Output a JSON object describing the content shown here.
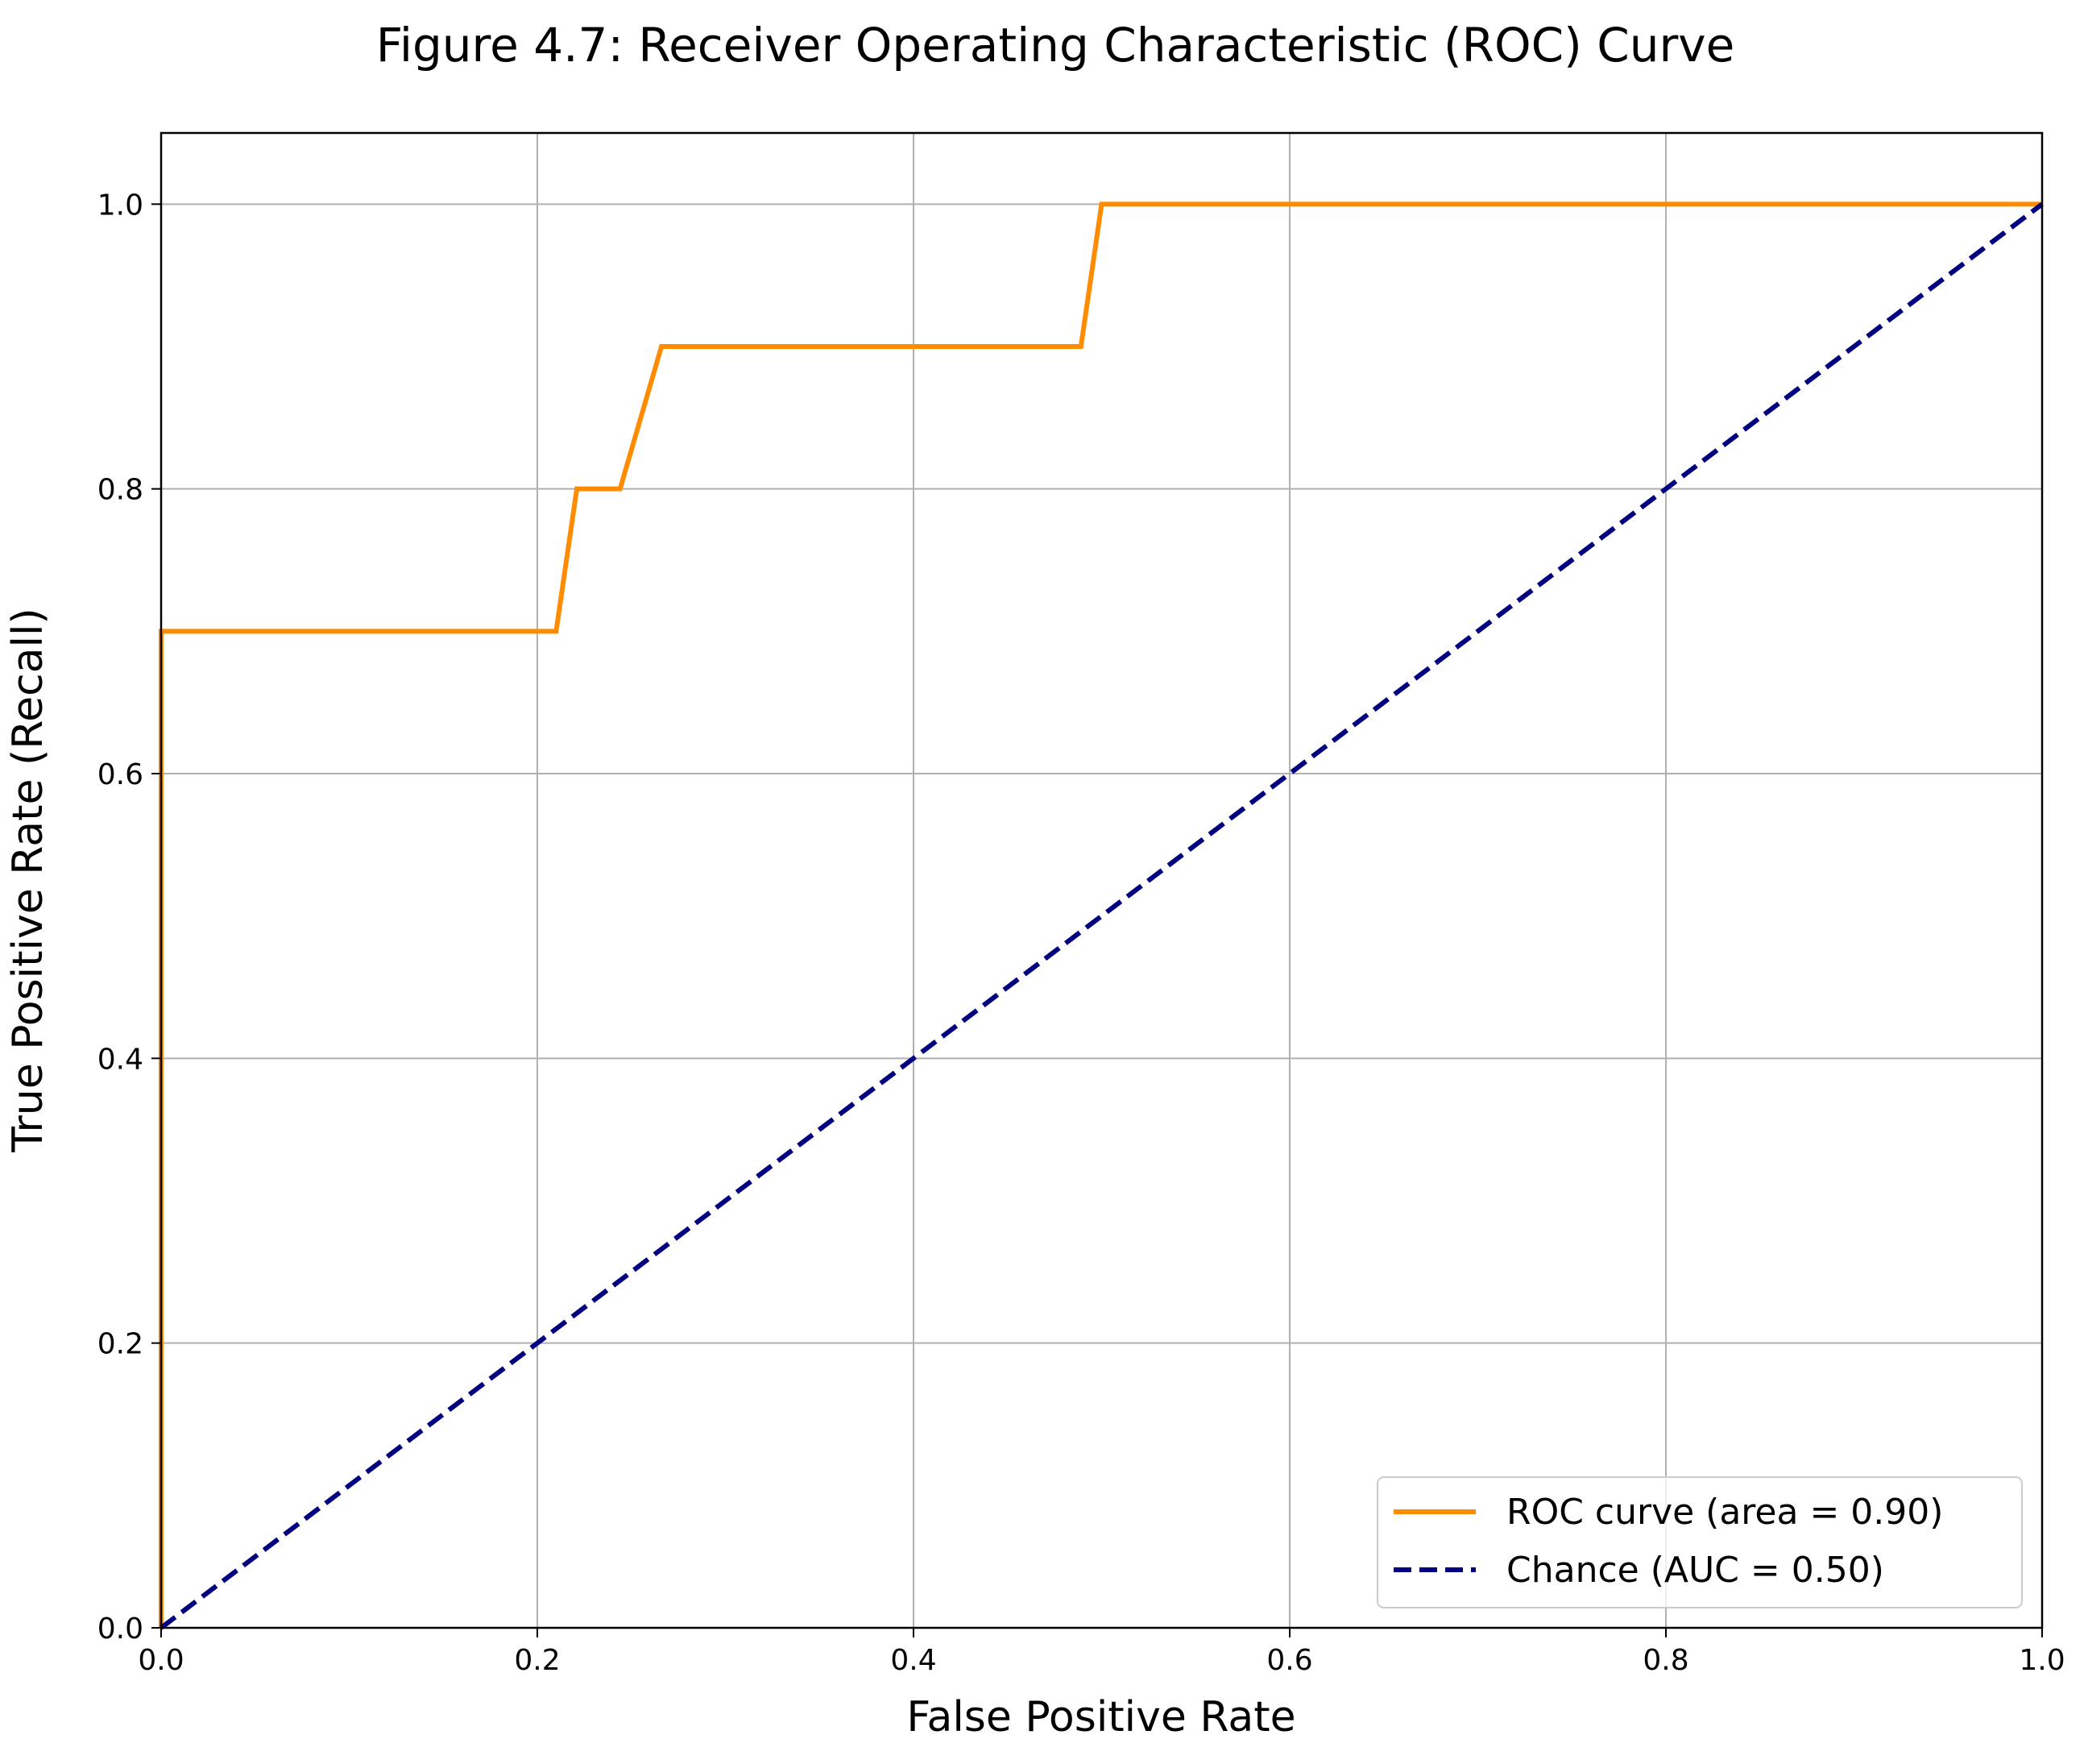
{
  "chart_data": {
    "type": "line",
    "title": "Figure 4.7: Receiver Operating Characteristic (ROC) Curve",
    "xlabel": "False Positive Rate",
    "ylabel": "True Positive Rate (Recall)",
    "xlim": [
      0.0,
      1.0
    ],
    "ylim": [
      0.0,
      1.05
    ],
    "grid": true,
    "legend_position": "bottom-right",
    "x_ticks": [
      "0.0",
      "0.2",
      "0.4",
      "0.6",
      "0.8",
      "1.0"
    ],
    "y_ticks": [
      "0.0",
      "0.2",
      "0.4",
      "0.6",
      "0.8",
      "1.0"
    ],
    "series": [
      {
        "name": "ROC curve (area = 0.90)",
        "color": "#ff8c00",
        "style": "solid",
        "x": [
          0.0,
          0.0,
          0.21,
          0.221,
          0.244,
          0.266,
          0.489,
          0.5,
          1.0
        ],
        "y": [
          0.0,
          0.7,
          0.7,
          0.8,
          0.8,
          0.9,
          0.9,
          1.0,
          1.0
        ]
      },
      {
        "name": "Chance (AUC = 0.50)",
        "color": "#000080",
        "style": "dashed",
        "x": [
          0.0,
          1.0
        ],
        "y": [
          0.0,
          1.0
        ]
      }
    ]
  }
}
